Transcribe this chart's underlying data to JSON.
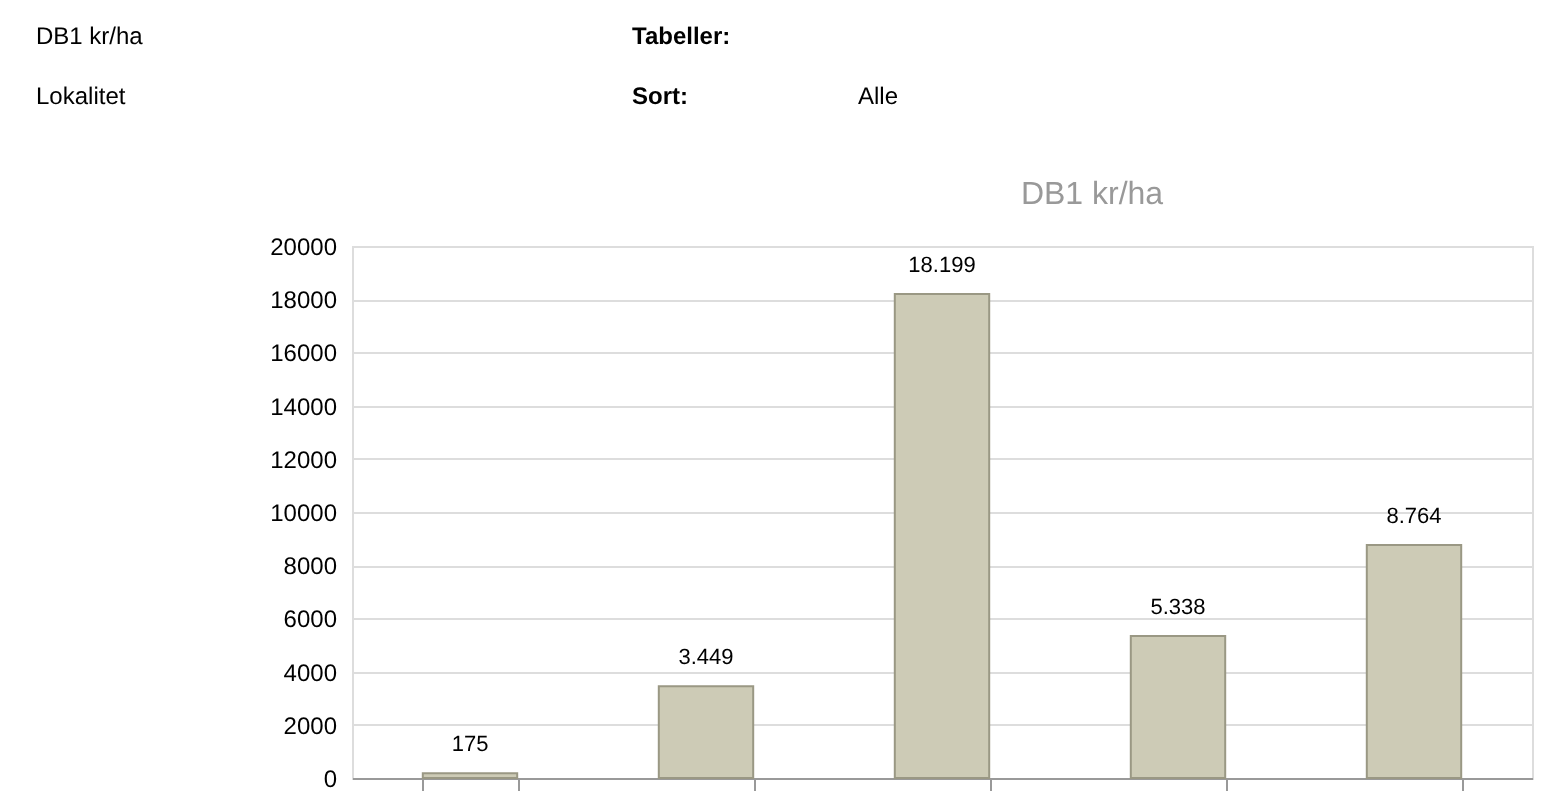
{
  "chart_data": {
    "type": "bar",
    "title": "DB1 kr/ha",
    "annotations": [
      "DB1 kr/ha",
      "Lokalitet",
      "Tabeller:",
      "Sort:",
      "Alle"
    ],
    "categories": [
      null,
      null,
      null,
      null,
      null
    ],
    "values": [
      175,
      3449,
      18199,
      5338,
      8764
    ],
    "value_labels": [
      "175",
      "3.449",
      "18.199",
      "5.338",
      "8.764"
    ],
    "color": "#cdcbb6",
    "ylim": [
      0,
      20000
    ],
    "yticks": [
      0,
      2000,
      4000,
      6000,
      8000,
      10000,
      12000,
      14000,
      16000,
      18000,
      20000
    ],
    "grid": "y"
  }
}
